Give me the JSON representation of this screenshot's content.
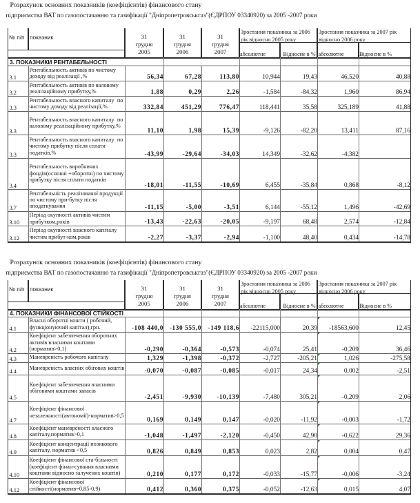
{
  "title": {
    "line1": "Розрахунок основних показників (коефіцієнтів) фінансового стану",
    "line2": "підприємства ВАТ по газопостачанню та газифікації \"Дніпропетровськгаз\"(ЄДРПОУ 03340920) за 2005 -2007 роки"
  },
  "header": {
    "num_label": "№ п/п",
    "indicator_label": "показник",
    "date_columns": [
      [
        "31",
        "грудня",
        "2005"
      ],
      [
        "31",
        "грудня",
        "2006"
      ],
      [
        "31",
        "грудня",
        "2007"
      ]
    ],
    "group_2006": [
      "Зростання показника за 2006",
      "рік відносно 2005 року"
    ],
    "group_2007": [
      "Зростання показника за 2007 рік",
      "відносно 2006 року"
    ],
    "sub_columns": [
      "абсолютне",
      "Відносне в %",
      "абсолютне",
      "Відносне в %"
    ]
  },
  "tables": [
    {
      "section": "3. ПОКАЗНИКИ РЕНТАБЕЛЬНОСТІ",
      "rows": [
        {
          "no": "3.1",
          "indicator": [
            "Рентабельность активів по чистому",
            "доходу від реалізації ,%"
          ],
          "values": [
            "56,34",
            "67,28",
            "113,80",
            "10,944",
            "19,43",
            "46,520",
            "40,88"
          ]
        },
        {
          "no": "3.2",
          "indicator": [
            "Рентабельность активів по валовому",
            "реалізаційному прибутку,%"
          ],
          "values": [
            "1,88",
            "0,29",
            "2,26",
            "-1,584",
            "-84,32",
            "1,960",
            "86,94"
          ]
        },
        {
          "no": "3.3",
          "indicator": [
            "Рентабельность власного капиталу  по",
            "чистому доходу від реалізації,%"
          ],
          "values": [
            "332,84",
            "451,29",
            "776,47",
            "118,441",
            "35,58",
            "325,189",
            "41,88"
          ]
        },
        {
          "no": "3.3",
          "indicator": [
            "Рентабельность власного капиталу  по",
            "валовому реалізаційному прибутку,%"
          ],
          "values": [
            "11,10",
            "1,98",
            "15,39",
            "-9,126",
            "-82,20",
            "13,411",
            "87,16"
          ]
        },
        {
          "no": "3.3",
          "indicator": [
            "Рентабельность власного капиталу  по",
            "чистому прибутку після сплати",
            "податків,%"
          ],
          "values": [
            "-43,99",
            "-29,64",
            "-34,03",
            "14,349",
            "-32,62",
            "-4,382",
            ""
          ]
        },
        {
          "no": "3.4",
          "indicator": [
            "Рентабельность виробничих",
            "фондів(основні +оборотні) по чистому",
            "прибутку після сплати податків"
          ],
          "values": [
            "-18,01",
            "-11,55",
            "-10,69",
            "6,455",
            "-35,84",
            "0,868",
            "-8,12"
          ]
        },
        {
          "no": "3.7",
          "indicator": [
            "Рентабельність реалізованої продукції",
            "по чистому при-бутку після",
            "оподаткування"
          ],
          "values": [
            "-11,15",
            "-5,00",
            "-3,51",
            "6,144",
            "-55,12",
            "1,496",
            "-42,69"
          ]
        },
        {
          "no": "3.10",
          "indicator": [
            "Період окупності активів чистим",
            "прибутком,років"
          ],
          "values": [
            "-13,43",
            "-22,63",
            "-20,05",
            "-9,197",
            "68,48",
            "2,574",
            "-12,84"
          ]
        },
        {
          "no": "3.12",
          "indicator": [
            "Період окупності власного капіталу",
            "чистим прибут-ком,років"
          ],
          "values": [
            "-2,27",
            "-3,37",
            "-2,94",
            "-1,100",
            "48,40",
            "0,434",
            "-14,78"
          ]
        }
      ]
    },
    {
      "section": "4. ПОКАЗНИКИ ФІНАНСОВОЇ СТІЙКОСТІ",
      "rows": [
        {
          "no": "4.1",
          "indicator": [
            "Власні оборотні кошти ( робочий,",
            "функціонуючий капітал),грн."
          ],
          "values": [
            "-108 440,0",
            "-130 555,0",
            "-149 118,6",
            "-22115,000",
            "20,39",
            "-18563,600",
            "12,45"
          ]
        },
        {
          "no": "4.2",
          "indicator": [
            "Коефіцієнт забезпечення оборотних",
            "активів власними коштами",
            "(норматив>0,1)"
          ],
          "values": [
            "-0,290",
            "-0,364",
            "-0,573",
            "-0,074",
            "25,41",
            "-0,209",
            "36,46"
          ]
        },
        {
          "no": "4.3",
          "indicator": [
            "Маневреність робочого капіталу"
          ],
          "values": [
            "1,329",
            "-1,398",
            "-0,372",
            "-2,727",
            "-205,21",
            "1,026",
            "-275,58"
          ]
        },
        {
          "no": "4.4",
          "indicator": [
            "Маневреність власних обігових коштів"
          ],
          "values": [
            "-0,070",
            "-0,087",
            "-0,085",
            "-0,017",
            "24,34",
            "0,002",
            "-2,51"
          ]
        },
        {
          "no": "4.5",
          "indicator": [
            "Коефіцієнт забезпечення власними",
            "обіговими коштами запасів"
          ],
          "values": [
            "-2,451",
            "-9,930",
            "-10,139",
            "-7,480",
            "305,21",
            "-0,209",
            "2,06"
          ]
        },
        {
          "no": "4.7",
          "indicator": [
            "Коефіцієнт фінансової",
            "незалежності(автономії)-норматив>0,5"
          ],
          "values": [
            "0,169",
            "0,149",
            "0,147",
            "-0,020",
            "-11,92",
            "-0,003",
            "-1,72"
          ]
        },
        {
          "no": "4.8",
          "indicator": [
            "Коефіцієнт маневреності власного",
            "капіталу,норматив>0,1"
          ],
          "values": [
            "-1,048",
            "-1,497",
            "-2,120",
            "-0,450",
            "42,90",
            "-0,622",
            "29,36"
          ]
        },
        {
          "no": "4.9",
          "indicator": [
            "Коефіцієнт концентрації позикового",
            "капіталу, норматив <0,5"
          ],
          "values": [
            "0,826",
            "0,849",
            "0,853",
            "0,023",
            "2,82",
            "0,004",
            "0,47"
          ]
        },
        {
          "no": "4.10",
          "indicator": [
            "Коефіцієнт фінансової ста-більності",
            "(коефіцієнт фінан-сування власними",
            "коштами відносно залучених коштів)"
          ],
          "values": [
            "0,210",
            "0,177",
            "0,172",
            "-0,033",
            "-15,77",
            "-0,006",
            "-3,24"
          ]
        },
        {
          "no": "4.12",
          "indicator": [
            "Коефіцієнт фінансової",
            "стійкості(норматив=0,85-0,9)"
          ],
          "values": [
            "0,412",
            "0,360",
            "0,375",
            "-0,052",
            "-12,63",
            "0,015",
            "4,07"
          ]
        }
      ]
    }
  ]
}
